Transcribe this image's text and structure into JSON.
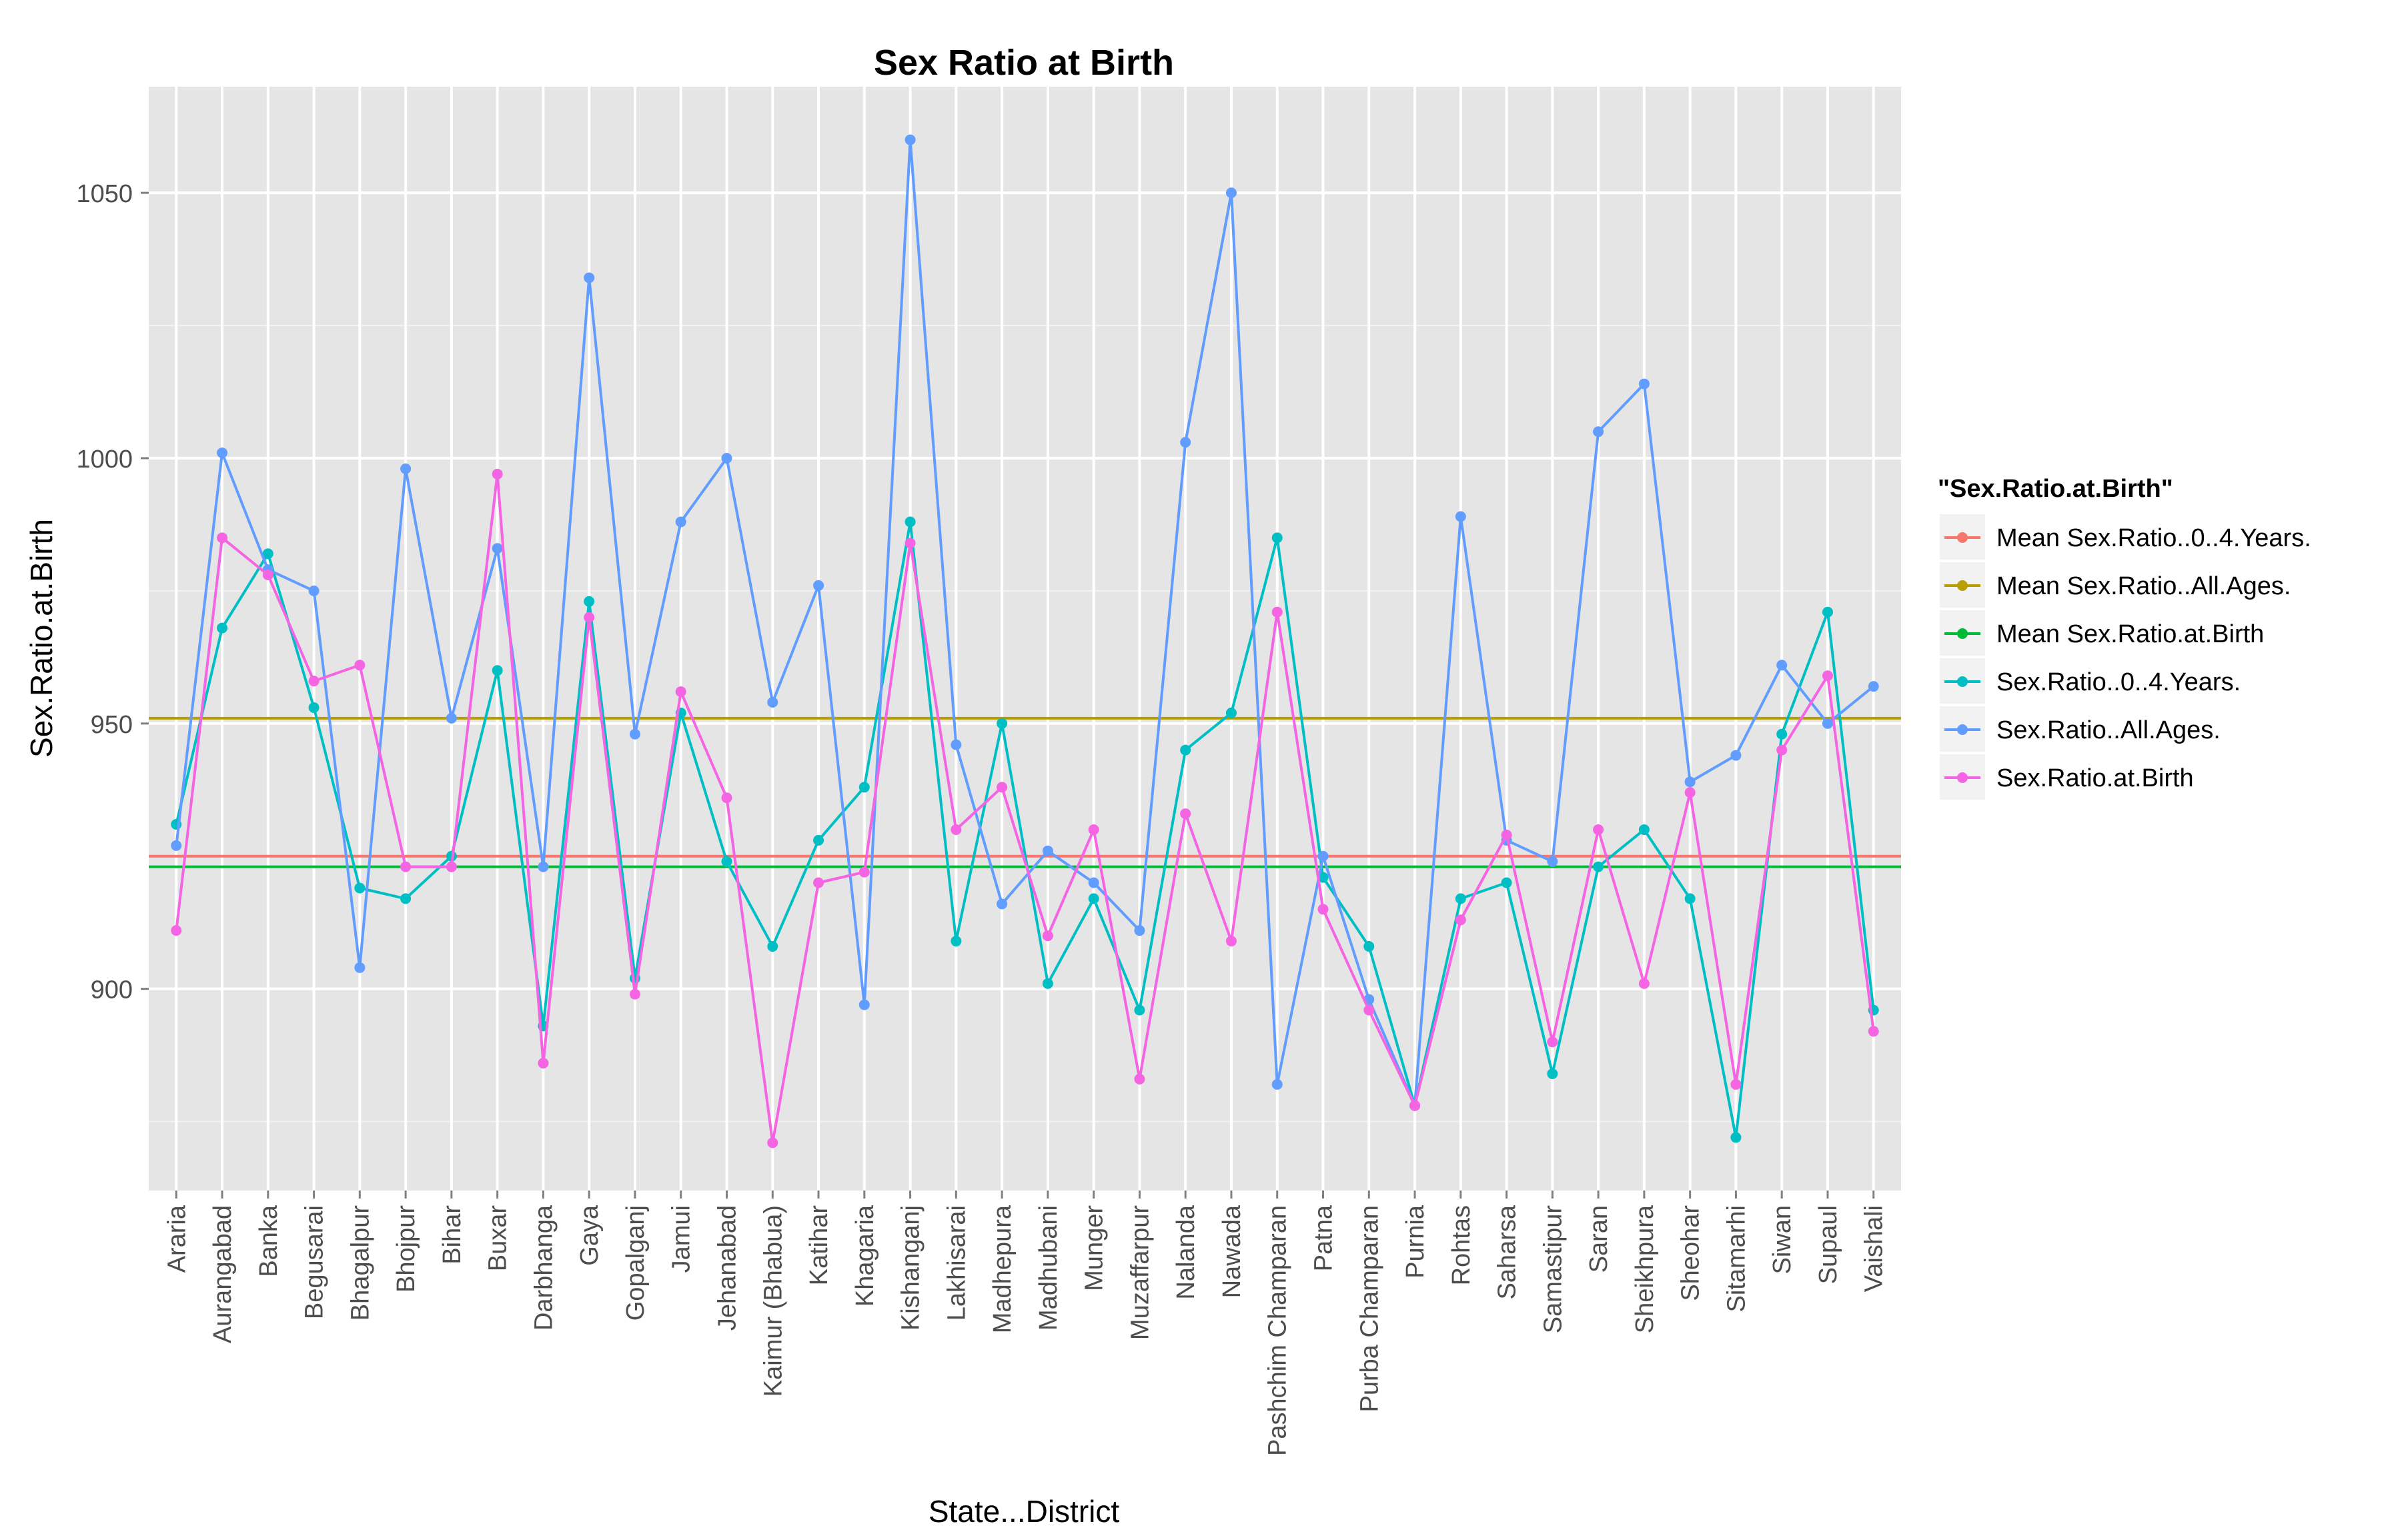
{
  "chart_data": {
    "type": "line",
    "title": "Sex Ratio at Birth",
    "xlabel": "State...District",
    "ylabel": "Sex.Ratio.at.Birth",
    "ylim": [
      862,
      1070
    ],
    "yticks": [
      900,
      950,
      1000,
      1050
    ],
    "grid": true,
    "legend_position": "right",
    "legend_title": "\"Sex.Ratio.at.Birth\"",
    "categories": [
      "Araria",
      "Aurangabad",
      "Banka",
      "Begusarai",
      "Bhagalpur",
      "Bhojpur",
      "Bihar",
      "Buxar",
      "Darbhanga",
      "Gaya",
      "Gopalganj",
      "Jamui",
      "Jehanabad",
      "Kaimur (Bhabua)",
      "Katihar",
      "Khagaria",
      "Kishanganj",
      "Lakhisarai",
      "Madhepura",
      "Madhubani",
      "Munger",
      "Muzaffarpur",
      "Nalanda",
      "Nawada",
      "Pashchim Champaran",
      "Patna",
      "Purba Champaran",
      "Purnia",
      "Rohtas",
      "Saharsa",
      "Samastipur",
      "Saran",
      "Sheikhpura",
      "Sheohar",
      "Sitamarhi",
      "Siwan",
      "Supaul",
      "Vaishali"
    ],
    "hlines": [
      {
        "name": "Mean Sex.Ratio..0..4.Years.",
        "value": 925,
        "color": "#F8766D"
      },
      {
        "name": "Mean Sex.Ratio..All.Ages.",
        "value": 951,
        "color": "#B79F00"
      },
      {
        "name": "Mean Sex.Ratio.at.Birth",
        "value": 923,
        "color": "#00BA38"
      }
    ],
    "series": [
      {
        "name": "Sex.Ratio..0..4.Years.",
        "color": "#00BFC4",
        "values": [
          931,
          968,
          982,
          953,
          919,
          917,
          925,
          960,
          893,
          973,
          902,
          952,
          924,
          908,
          928,
          938,
          988,
          909,
          950,
          901,
          917,
          896,
          945,
          952,
          985,
          921,
          908,
          878,
          917,
          920,
          884,
          923,
          930,
          917,
          872,
          948,
          971,
          896
        ]
      },
      {
        "name": "Sex.Ratio..All.Ages.",
        "color": "#619CFF",
        "values": [
          927,
          1001,
          979,
          975,
          904,
          998,
          951,
          983,
          923,
          1034,
          948,
          988,
          1000,
          954,
          976,
          897,
          1060,
          946,
          916,
          926,
          920,
          911,
          1003,
          1050,
          882,
          925,
          898,
          878,
          989,
          928,
          924,
          1005,
          1014,
          939,
          944,
          961,
          950,
          957
        ]
      },
      {
        "name": "Sex.Ratio.at.Birth",
        "color": "#F564E3",
        "values": [
          911,
          985,
          978,
          958,
          961,
          923,
          923,
          997,
          886,
          970,
          899,
          956,
          936,
          871,
          920,
          922,
          984,
          930,
          938,
          910,
          930,
          883,
          933,
          909,
          971,
          915,
          896,
          878,
          913,
          929,
          890,
          930,
          901,
          937,
          882,
          945,
          959,
          892
        ]
      }
    ]
  }
}
